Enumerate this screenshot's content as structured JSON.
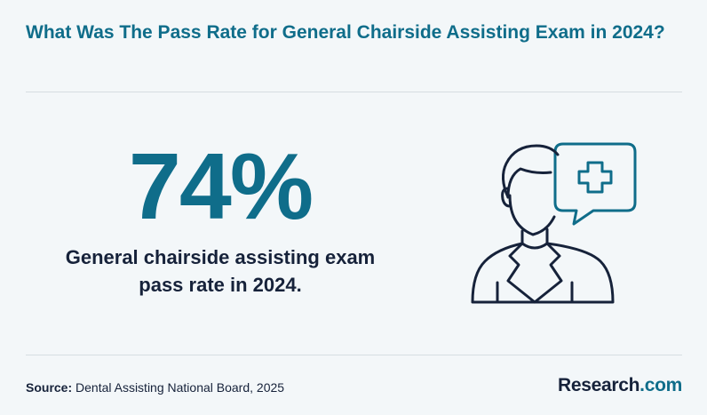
{
  "header": {
    "title": "What Was The Pass Rate for General Chairside Assisting Exam in 2024?"
  },
  "main": {
    "stat_value": "74%",
    "stat_description": "General chairside assisting exam pass rate in 2024."
  },
  "illustration": {
    "icon": "dental-professional-with-medical-cross-speech-bubble",
    "stroke_color": "#16223a",
    "accent_color": "#0f6d8a"
  },
  "footer": {
    "source_label": "Source:",
    "source_text": "Dental Assisting National Board, 2025",
    "brand_name": "Research",
    "brand_suffix": ".com"
  },
  "colors": {
    "accent": "#0f6d8a",
    "text_dark": "#16223a",
    "background": "#f3f7f9"
  }
}
